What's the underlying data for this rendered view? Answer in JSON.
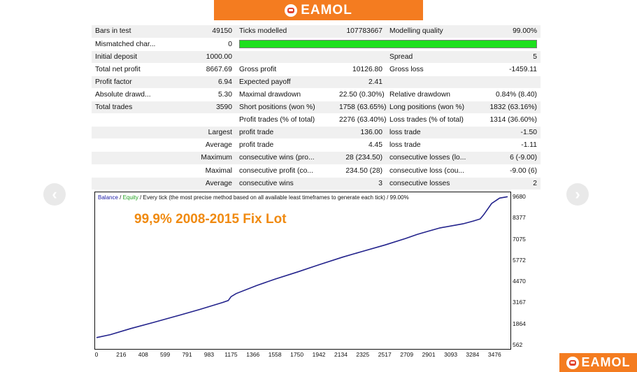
{
  "brand": {
    "name": "EAMOL"
  },
  "nav": {
    "prev": "‹",
    "next": "›"
  },
  "report": {
    "rows": [
      {
        "c1": "Bars in test",
        "c2": "49150",
        "c3": "Ticks modelled",
        "c4": "107783667",
        "c5": "Modelling quality",
        "c6": "99.00%"
      },
      {
        "c1": "Mismatched char...",
        "c2": "0",
        "quality_bar": true
      },
      {
        "c1": "Initial deposit",
        "c2": "1000.00",
        "c3": "",
        "c4": "",
        "c5": "Spread",
        "c6": "5"
      },
      {
        "c1": "Total net profit",
        "c2": "8667.69",
        "c3": "Gross profit",
        "c4": "10126.80",
        "c5": "Gross loss",
        "c6": "-1459.11"
      },
      {
        "c1": "Profit factor",
        "c2": "6.94",
        "c3": "Expected payoff",
        "c4": "2.41",
        "c5": "",
        "c6": ""
      },
      {
        "c1": "Absolute drawd...",
        "c2": "5.30",
        "c3": "Maximal drawdown",
        "c4": "22.50 (0.30%)",
        "c5": "Relative drawdown",
        "c6": "0.84% (8.40)"
      },
      {
        "c1": "Total trades",
        "c2": "3590",
        "c3": "Short positions (won %)",
        "c4": "1758 (63.65%)",
        "c5": "Long positions (won %)",
        "c6": "1832 (63.16%)"
      },
      {
        "c1": "",
        "c2": "",
        "c3": "Profit trades (% of total)",
        "c4": "2276 (63.40%)",
        "c5": "Loss trades (% of total)",
        "c6": "1314 (36.60%)"
      },
      {
        "c1": "",
        "c2": "Largest",
        "c3": "profit trade",
        "c4": "136.00",
        "c5": "loss trade",
        "c6": "-1.50"
      },
      {
        "c1": "",
        "c2": "Average",
        "c3": "profit trade",
        "c4": "4.45",
        "c5": "loss trade",
        "c6": "-1.11"
      },
      {
        "c1": "",
        "c2": "Maximum",
        "c3": "consecutive wins (pro...",
        "c4": "28 (234.50)",
        "c5": "consecutive losses (lo...",
        "c6": "6 (-9.00)"
      },
      {
        "c1": "",
        "c2": "Maximal",
        "c3": "consecutive profit (co...",
        "c4": "234.50 (28)",
        "c5": "consecutive loss (cou...",
        "c6": "-9.00 (6)"
      },
      {
        "c1": "",
        "c2": "Average",
        "c3": "consecutive wins",
        "c4": "3",
        "c5": "consecutive losses",
        "c6": "2"
      }
    ]
  },
  "chart": {
    "legend_balance": "Balance",
    "legend_sep": " / ",
    "legend_equity": "Equity",
    "legend_rest": " / Every tick (the most precise method based on all available least timeframes to generate each tick) / 99.00%",
    "overlay": "99,9% 2008-2015 Fix Lot",
    "colors": {
      "line": "#23238c",
      "balance": "#2020a8",
      "equity": "#20a020",
      "overlay": "#f08a10"
    }
  },
  "chart_data": {
    "type": "line",
    "xlabel": "",
    "ylabel": "",
    "ylim": [
      562,
      9680
    ],
    "xlim": [
      0,
      3590
    ],
    "y_ticks": [
      9680,
      8377,
      7075,
      5772,
      4470,
      3167,
      1864,
      562
    ],
    "x_ticks": [
      "0",
      "216",
      "408",
      "599",
      "791",
      "983",
      "1175",
      "1366",
      "1558",
      "1750",
      "1942",
      "2134",
      "2325",
      "2517",
      "2709",
      "2901",
      "3093",
      "3284",
      "3476"
    ],
    "series": [
      {
        "name": "Balance",
        "x": [
          0,
          120,
          300,
          500,
          700,
          900,
          1100,
          1150,
          1175,
          1220,
          1400,
          1560,
          1760,
          1950,
          2150,
          2320,
          2520,
          2700,
          2800,
          2900,
          3000,
          3200,
          3290,
          3350,
          3380,
          3450,
          3520,
          3590
        ],
        "y": [
          1000,
          1180,
          1560,
          1940,
          2330,
          2730,
          3160,
          3280,
          3520,
          3710,
          4210,
          4600,
          5050,
          5500,
          5950,
          6300,
          6700,
          7100,
          7350,
          7550,
          7750,
          8000,
          8170,
          8300,
          8550,
          9250,
          9580,
          9668
        ]
      }
    ]
  }
}
